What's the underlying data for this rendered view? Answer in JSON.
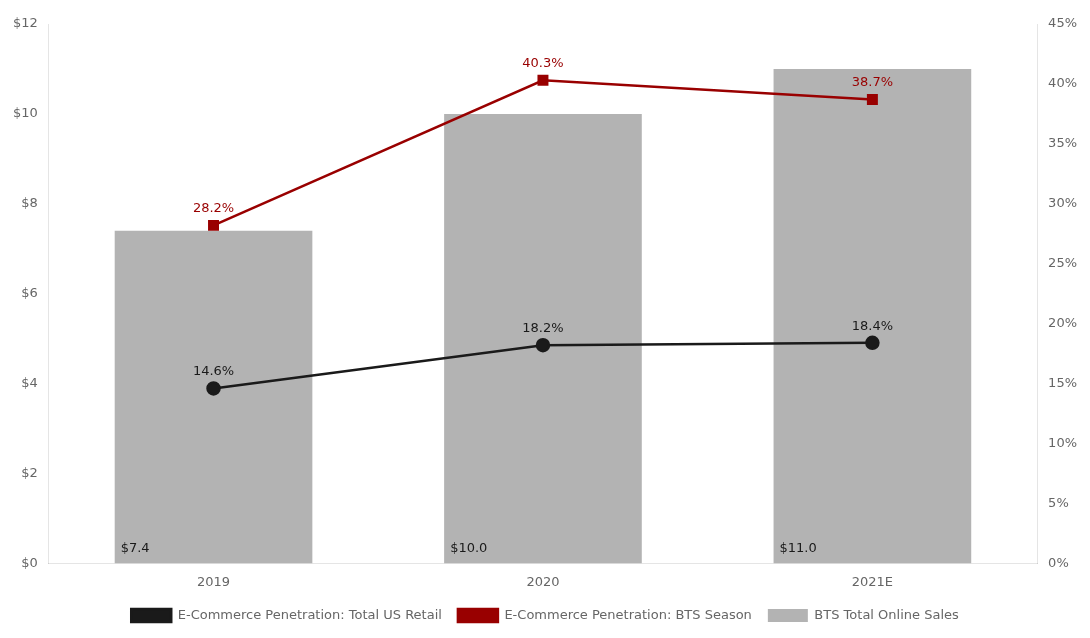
{
  "chart_data": {
    "type": "bar",
    "categories": [
      "2019",
      "2020",
      "2021E"
    ],
    "series": [
      {
        "name": "BTS Total Online Sales",
        "type": "bar",
        "color": "#b3b3b3",
        "values": [
          7.4,
          10.0,
          11.0
        ],
        "value_labels": [
          "$7.4",
          "$10.0",
          "$11.0"
        ]
      },
      {
        "name": "E-Commerce Penetration: Total US Retail",
        "type": "line",
        "axis": "y2",
        "color": "#1a1a1a",
        "marker": "circle",
        "values": [
          14.6,
          18.2,
          18.4
        ],
        "value_labels": [
          "14.6%",
          "18.2%",
          "18.4%"
        ]
      },
      {
        "name": "E-Commerce Penetration: BTS Season",
        "type": "line",
        "axis": "y2",
        "color": "#990000",
        "marker": "square",
        "values": [
          28.2,
          40.3,
          38.7
        ],
        "value_labels": [
          "28.2%",
          "40.3%",
          "38.7%"
        ]
      }
    ],
    "ylim": [
      0,
      12
    ],
    "yticks": [
      {
        "value": 0,
        "label": "$0"
      },
      {
        "value": 2,
        "label": "$2"
      },
      {
        "value": 4,
        "label": "$4"
      },
      {
        "value": 6,
        "label": "$6"
      },
      {
        "value": 8,
        "label": "$8"
      },
      {
        "value": 10,
        "label": "$10"
      },
      {
        "value": 12,
        "label": "$12"
      }
    ],
    "y2lim": [
      0,
      45
    ],
    "y2ticks": [
      {
        "value": 0,
        "label": "0%"
      },
      {
        "value": 5,
        "label": "5%"
      },
      {
        "value": 10,
        "label": "10%"
      },
      {
        "value": 15,
        "label": "15%"
      },
      {
        "value": 20,
        "label": "20%"
      },
      {
        "value": 25,
        "label": "25%"
      },
      {
        "value": 30,
        "label": "30%"
      },
      {
        "value": 35,
        "label": "35%"
      },
      {
        "value": 40,
        "label": "40%"
      },
      {
        "value": 45,
        "label": "45%"
      }
    ],
    "data_labels": true,
    "grid": false,
    "legend": "bottom"
  }
}
